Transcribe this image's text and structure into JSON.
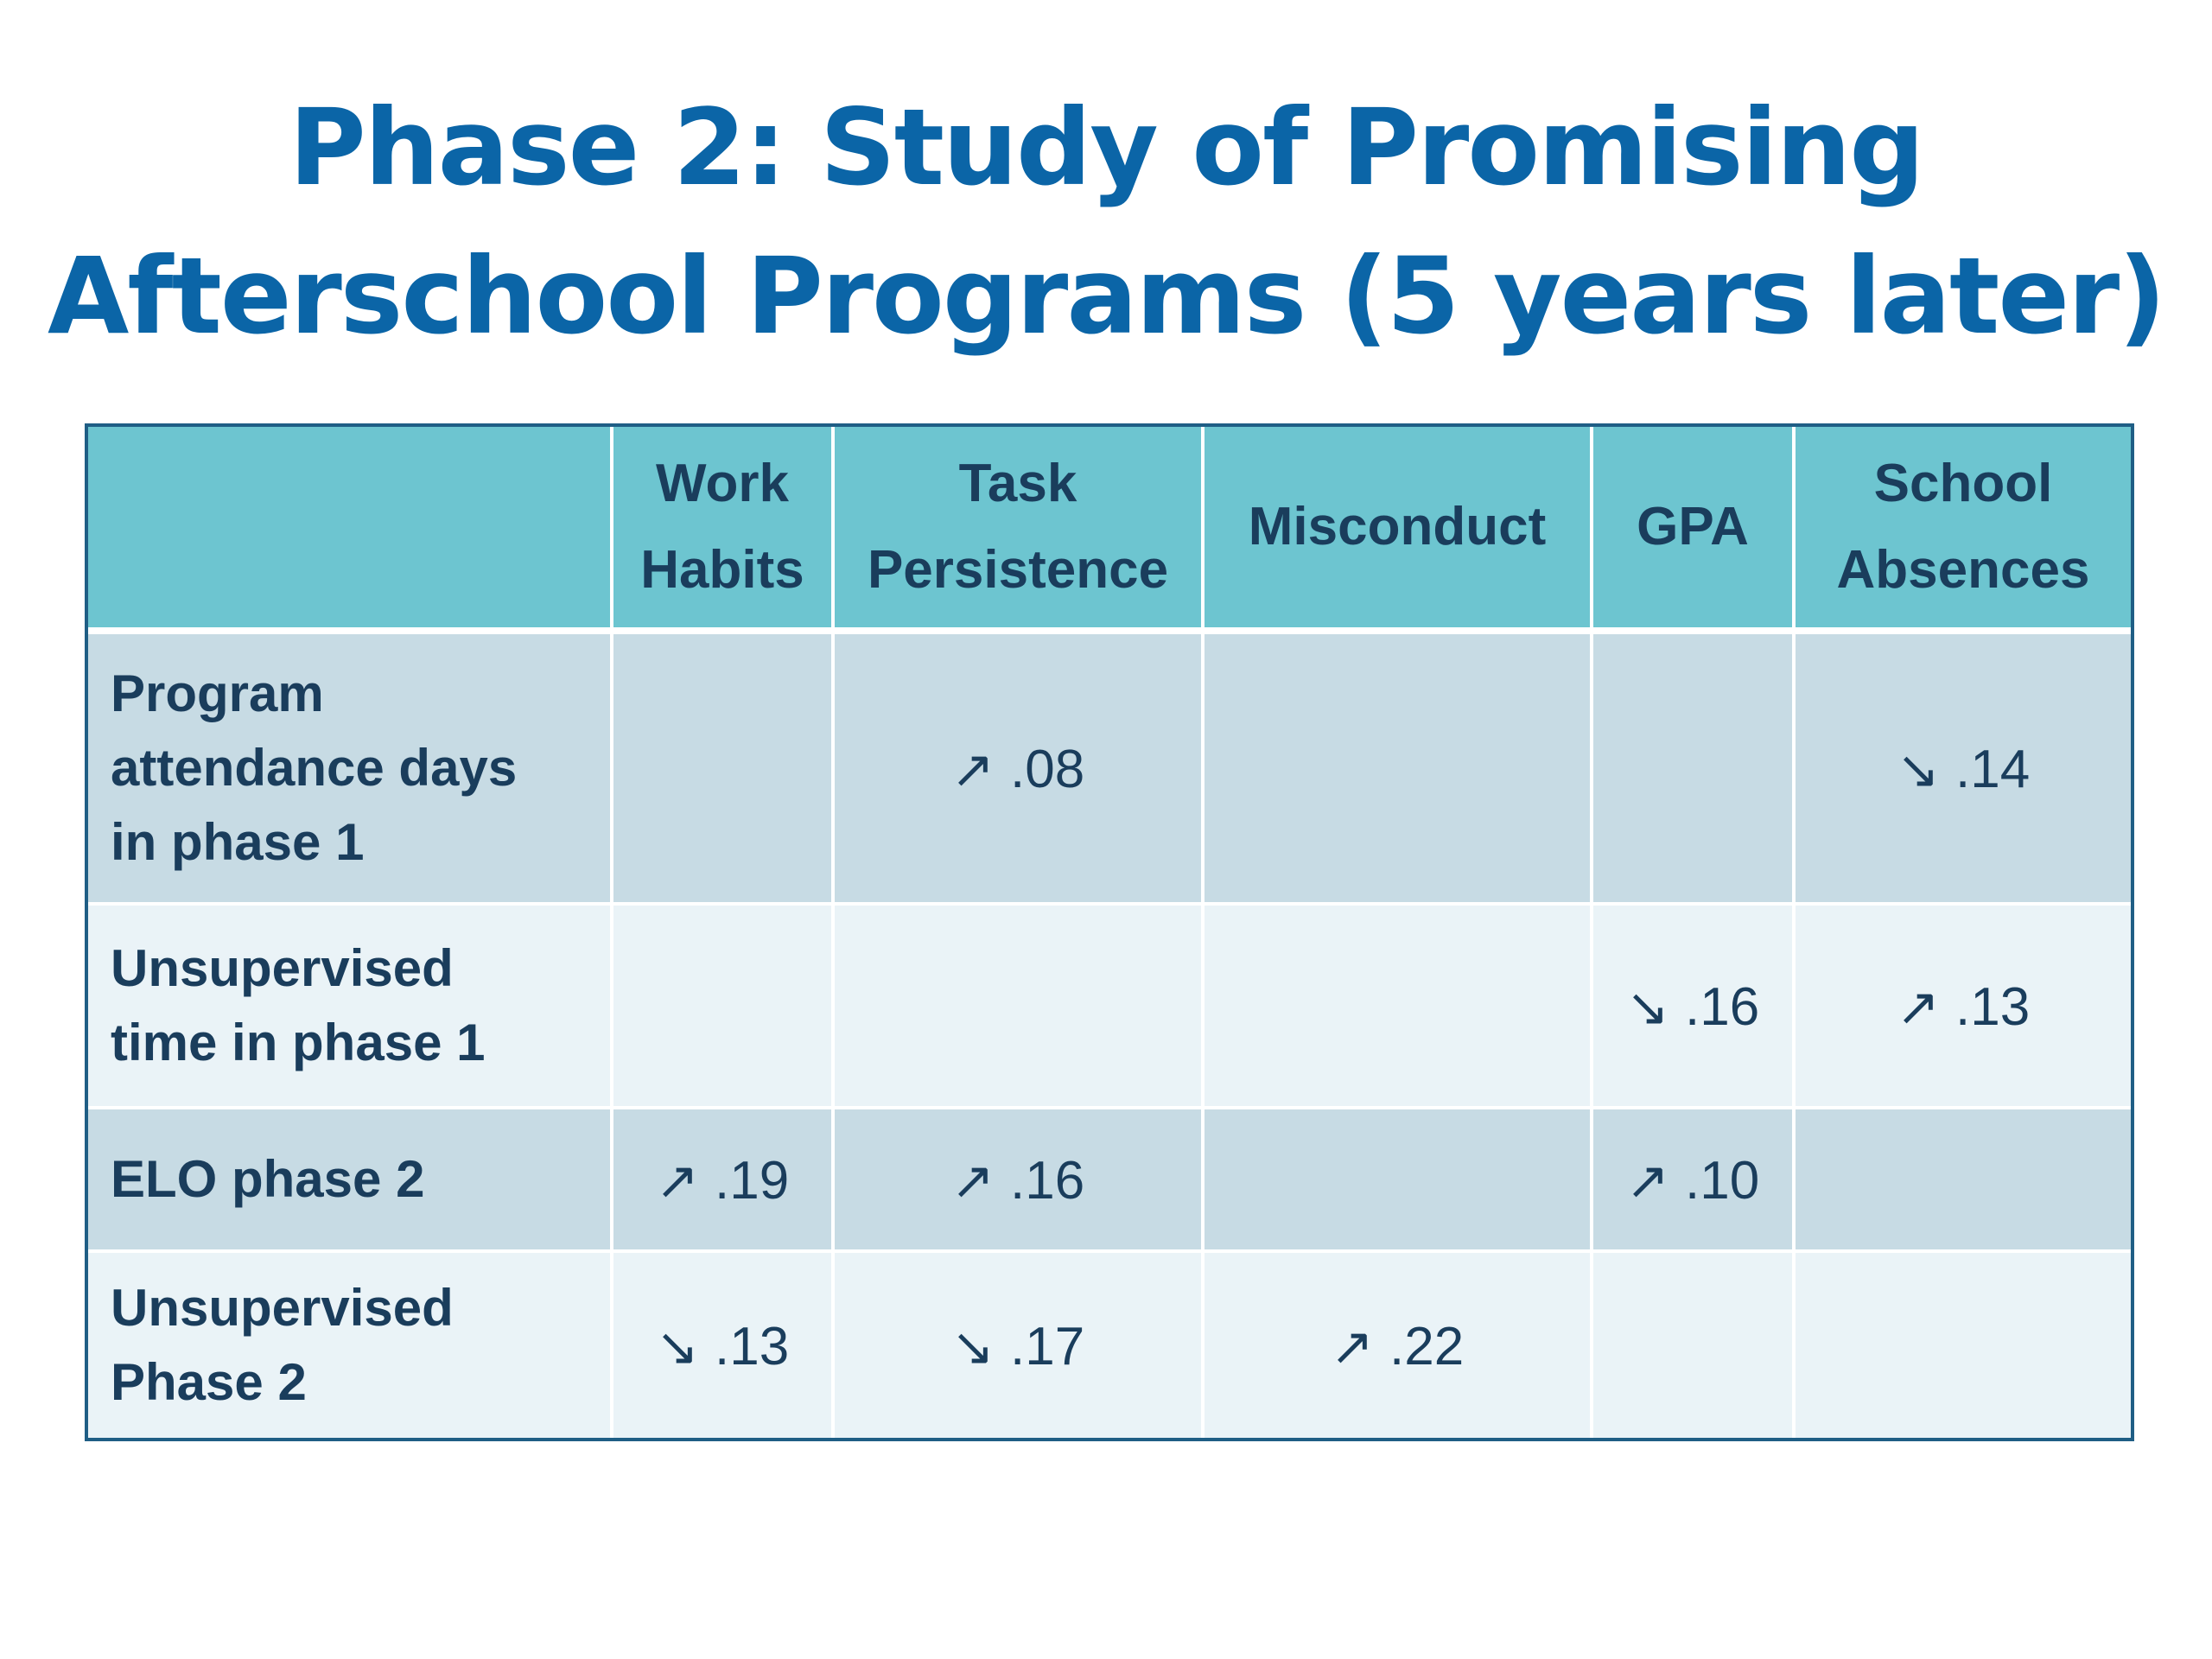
{
  "title": {
    "line1": "Phase 2:  Study of Promising",
    "line2": "Afterschool Programs (5 years later)"
  },
  "table": {
    "columns": [
      "",
      "Work Habits",
      "Task Persistence",
      "Misconduct",
      "GPA",
      "School Absences"
    ],
    "header": {
      "work_habits_1": "Work",
      "work_habits_2": "Habits",
      "task_persistence_1": "Task",
      "task_persistence_2": "Persistence",
      "misconduct": "Misconduct",
      "gpa": "GPA",
      "school_absences_1": "School",
      "school_absences_2": "Absences"
    },
    "rows": [
      {
        "label": [
          "Program",
          "attendance days",
          "in phase 1"
        ],
        "task_persistence": {
          "arrow": "↗",
          "value": ".08"
        },
        "school_absences": {
          "arrow": "↘",
          "value": ".14"
        }
      },
      {
        "label": [
          "Unsupervised",
          "time in phase 1"
        ],
        "gpa": {
          "arrow": "↘",
          "value": ".16"
        },
        "school_absences": {
          "arrow": "↗",
          "value": ".13"
        }
      },
      {
        "label": [
          "ELO phase 2"
        ],
        "work_habits": {
          "arrow": "↗",
          "value": ".19"
        },
        "task_persistence": {
          "arrow": "↗",
          "value": ".16"
        },
        "gpa": {
          "arrow": "↗",
          "value": ".10"
        }
      },
      {
        "label": [
          "Unsupervised",
          "Phase 2"
        ],
        "work_habits": {
          "arrow": "↘",
          "value": ".13"
        },
        "task_persistence": {
          "arrow": "↘",
          "value": ".17"
        },
        "misconduct": {
          "arrow": "↗",
          "value": ".22"
        }
      }
    ]
  },
  "colors": {
    "title": "#0b65a7",
    "header_bg": "#6dc5d0",
    "row_dark_bg": "#c7dbe4",
    "row_light_bg": "#eaf3f7",
    "text": "#1a3d5c",
    "border": "#1f5e85"
  }
}
